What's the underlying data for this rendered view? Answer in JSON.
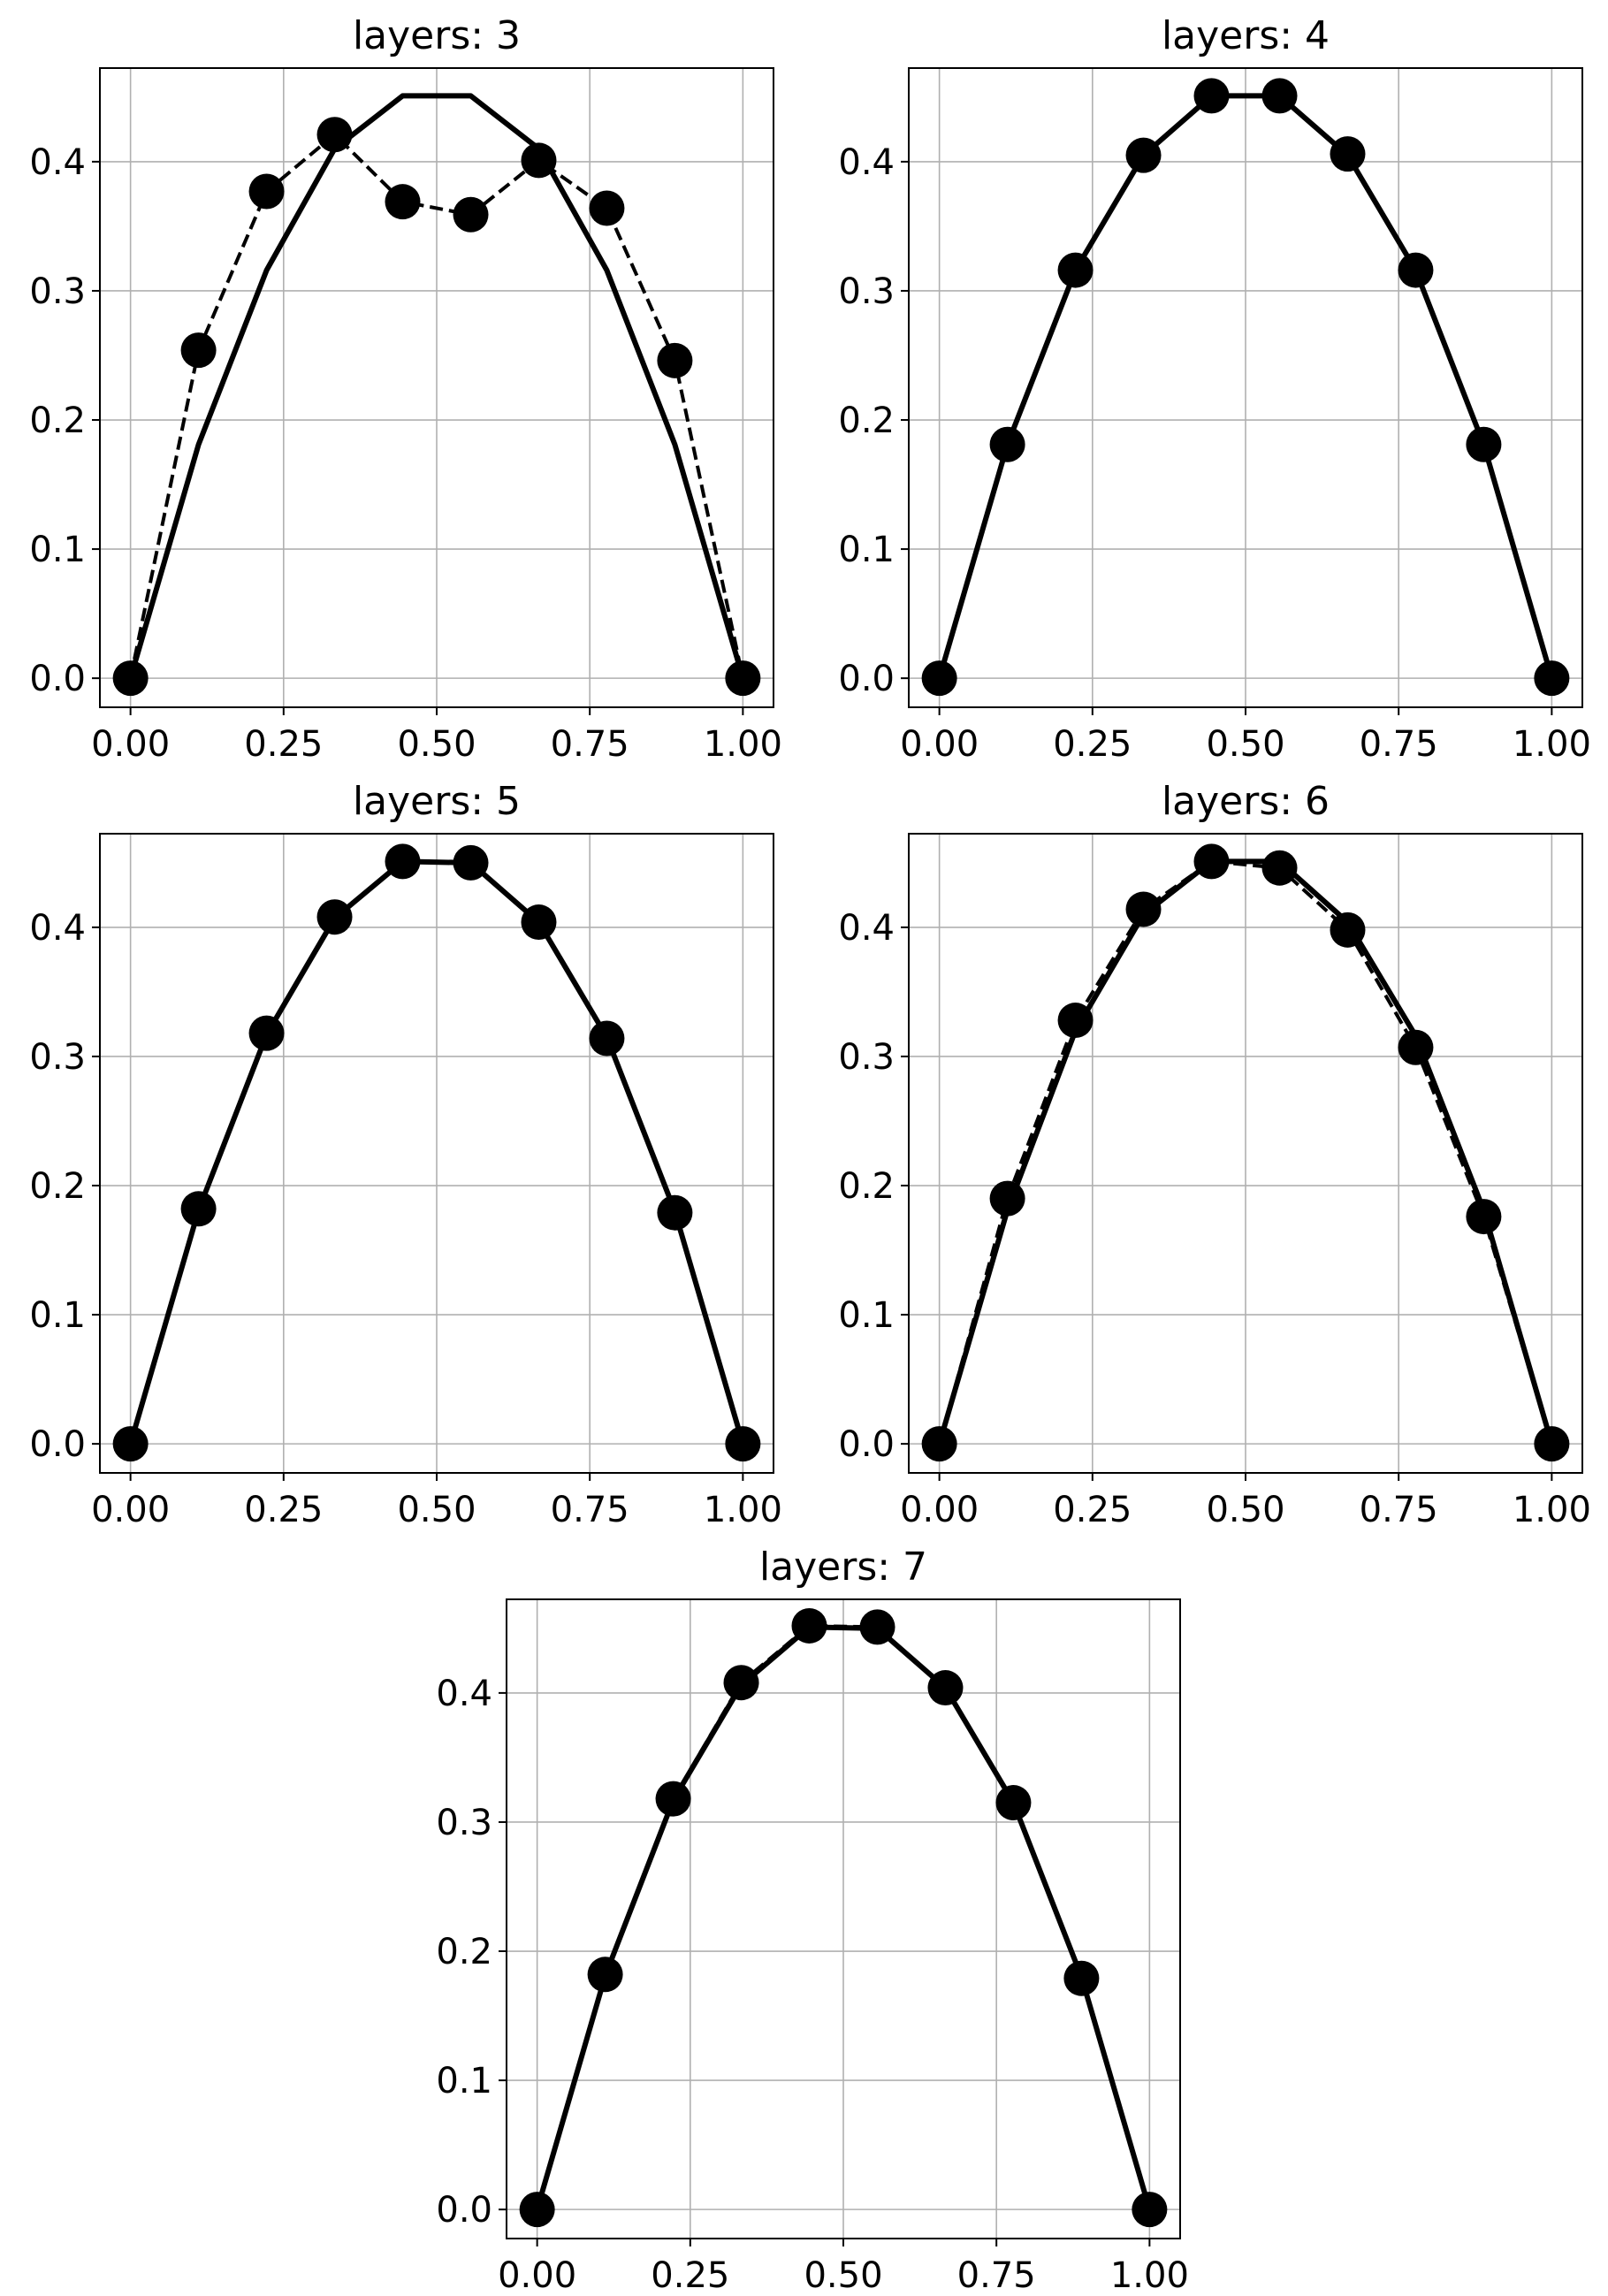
{
  "figure": {
    "x_ticks": [
      0,
      0.25,
      0.5,
      0.75,
      1
    ],
    "x_tick_labels": [
      "0.00",
      "0.25",
      "0.50",
      "0.75",
      "1.00"
    ],
    "y_ticks": [
      0,
      0.1,
      0.2,
      0.3,
      0.4
    ],
    "y_tick_labels": [
      "0.0",
      "0.1",
      "0.2",
      "0.3",
      "0.4"
    ],
    "line_color": "#000000",
    "grid_color": "#b0b0b0"
  },
  "chart_data": [
    {
      "type": "line",
      "title": "layers: 3",
      "xlabel": "",
      "ylabel": "",
      "xlim": [
        -0.05,
        1.05
      ],
      "ylim": [
        -0.0225,
        0.4725
      ],
      "grid": true,
      "x": [
        0,
        0.1111,
        0.2222,
        0.3333,
        0.4444,
        0.5556,
        0.6667,
        0.7778,
        0.8889,
        1
      ],
      "series": [
        {
          "style": "solid",
          "markers": false,
          "values": [
            0,
            0.181,
            0.316,
            0.41,
            0.451,
            0.451,
            0.41,
            0.316,
            0.181,
            0
          ]
        },
        {
          "style": "dashed",
          "markers": true,
          "values": [
            0,
            0.254,
            0.377,
            0.421,
            0.369,
            0.359,
            0.401,
            0.364,
            0.246,
            0
          ]
        }
      ]
    },
    {
      "type": "line",
      "title": "layers: 4",
      "xlabel": "",
      "ylabel": "",
      "xlim": [
        -0.05,
        1.05
      ],
      "ylim": [
        -0.0225,
        0.4725
      ],
      "grid": true,
      "x": [
        0,
        0.1111,
        0.2222,
        0.3333,
        0.4444,
        0.5556,
        0.6667,
        0.7778,
        0.8889,
        1
      ],
      "series": [
        {
          "style": "solid",
          "markers": false,
          "values": [
            0,
            0.181,
            0.316,
            0.405,
            0.451,
            0.451,
            0.405,
            0.316,
            0.181,
            0
          ]
        },
        {
          "style": "dashed",
          "markers": true,
          "values": [
            0,
            0.181,
            0.316,
            0.405,
            0.451,
            0.451,
            0.406,
            0.316,
            0.181,
            0
          ]
        }
      ]
    },
    {
      "type": "line",
      "title": "layers: 5",
      "xlabel": "",
      "ylabel": "",
      "xlim": [
        -0.05,
        1.05
      ],
      "ylim": [
        -0.0225,
        0.4725
      ],
      "grid": true,
      "x": [
        0,
        0.1111,
        0.2222,
        0.3333,
        0.4444,
        0.5556,
        0.6667,
        0.7778,
        0.8889,
        1
      ],
      "series": [
        {
          "style": "solid",
          "markers": false,
          "values": [
            0,
            0.181,
            0.317,
            0.407,
            0.451,
            0.45,
            0.404,
            0.315,
            0.18,
            0
          ]
        },
        {
          "style": "dashed",
          "markers": true,
          "values": [
            0,
            0.182,
            0.318,
            0.408,
            0.451,
            0.45,
            0.404,
            0.314,
            0.179,
            0
          ]
        }
      ]
    },
    {
      "type": "line",
      "title": "layers: 6",
      "xlabel": "",
      "ylabel": "",
      "xlim": [
        -0.05,
        1.05
      ],
      "ylim": [
        -0.0225,
        0.4725
      ],
      "grid": true,
      "x": [
        0,
        0.1111,
        0.2222,
        0.3333,
        0.4444,
        0.5556,
        0.6667,
        0.7778,
        0.8889,
        1
      ],
      "series": [
        {
          "style": "solid",
          "markers": false,
          "values": [
            0,
            0.181,
            0.32,
            0.41,
            0.451,
            0.451,
            0.404,
            0.316,
            0.181,
            0
          ]
        },
        {
          "style": "dashed",
          "markers": true,
          "values": [
            0,
            0.19,
            0.328,
            0.414,
            0.451,
            0.446,
            0.398,
            0.307,
            0.176,
            0
          ]
        }
      ]
    },
    {
      "type": "line",
      "title": "layers: 7",
      "xlabel": "",
      "ylabel": "",
      "xlim": [
        -0.05,
        1.05
      ],
      "ylim": [
        -0.0225,
        0.4725
      ],
      "grid": true,
      "x": [
        0,
        0.1111,
        0.2222,
        0.3333,
        0.4444,
        0.5556,
        0.6667,
        0.7778,
        0.8889,
        1
      ],
      "series": [
        {
          "style": "solid",
          "markers": false,
          "values": [
            0,
            0.181,
            0.317,
            0.406,
            0.451,
            0.45,
            0.404,
            0.315,
            0.18,
            0
          ]
        },
        {
          "style": "dashed",
          "markers": true,
          "values": [
            0,
            0.182,
            0.318,
            0.408,
            0.452,
            0.451,
            0.404,
            0.315,
            0.179,
            0
          ]
        }
      ]
    }
  ]
}
